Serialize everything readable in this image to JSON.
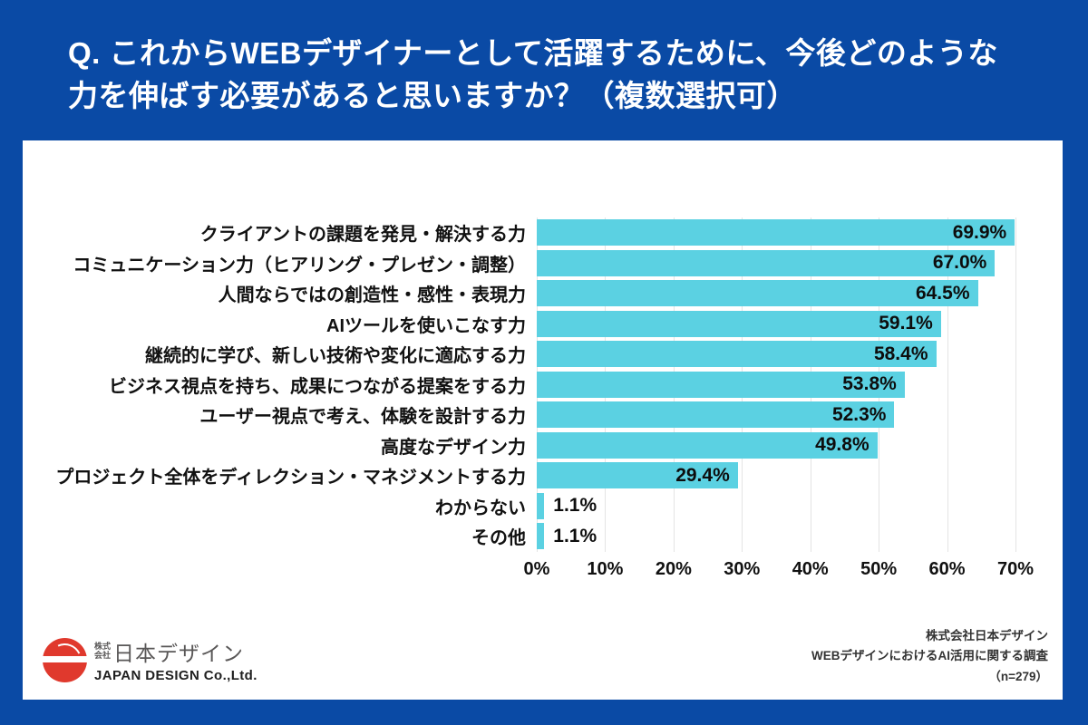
{
  "header": {
    "question_line1": "Q. これからWEBデザイナーとして活躍するために、今後どのような",
    "question_line2": "力を伸ばす必要があると思いますか？（複数選択可）"
  },
  "chart_data": {
    "type": "bar",
    "orientation": "horizontal",
    "title": "",
    "xlabel": "",
    "ylabel": "",
    "xlim": [
      0,
      70
    ],
    "grid": true,
    "bar_color": "#5bd1e2",
    "categories": [
      "クライアントの課題を発見・解決する力",
      "コミュニケーション力（ヒアリング・プレゼン・調整）",
      "人間ならではの創造性・感性・表現力",
      "AIツールを使いこなす力",
      "継続的に学び、新しい技術や変化に適応する力",
      "ビジネス視点を持ち、成果につながる提案をする力",
      "ユーザー視点で考え、体験を設計する力",
      "高度なデザイン力",
      "プロジェクト全体をディレクション・マネジメントする力",
      "わからない",
      "その他"
    ],
    "values": [
      69.9,
      67.0,
      64.5,
      59.1,
      58.4,
      53.8,
      52.3,
      49.8,
      29.4,
      1.1,
      1.1
    ],
    "value_labels": [
      "69.9%",
      "67.0%",
      "64.5%",
      "59.1%",
      "58.4%",
      "53.8%",
      "52.3%",
      "49.8%",
      "29.4%",
      "1.1%",
      "1.1%"
    ],
    "x_ticks": [
      "0%",
      "10%",
      "20%",
      "30%",
      "40%",
      "50%",
      "60%",
      "70%"
    ]
  },
  "footer": {
    "logo": {
      "prefix_line1": "株式",
      "prefix_line2": "会社",
      "name_jp": "日本デザイン",
      "name_en": "JAPAN DESIGN Co.,Ltd."
    },
    "source_lines": [
      "株式会社日本デザイン",
      "WEBデザインにおけるAI活用に関する調査",
      "（n=279）"
    ]
  },
  "colors": {
    "background_blue": "#0a4aa5",
    "bar_cyan": "#5bd1e2",
    "grid_gray": "#e4e4e4",
    "text_dark": "#111111",
    "logo_red": "#e0392d",
    "footer_text": "#333333"
  }
}
